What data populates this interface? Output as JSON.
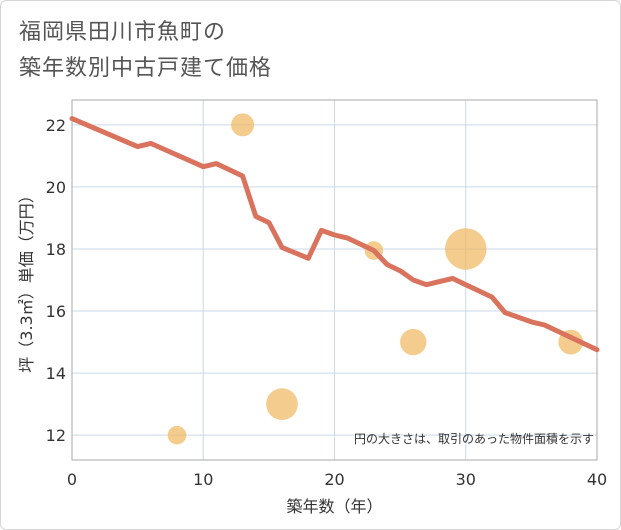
{
  "page": {
    "title_line1": "福岡県田川市魚町の",
    "title_line2": "築年数別中古戸建て価格"
  },
  "colors": {
    "line": "#d9735e",
    "bubble": "#f0b962",
    "grid": "#c9d9e8",
    "plot_border": "#aaaaaa"
  },
  "chart_data": {
    "type": "scatter",
    "title": "福岡県田川市魚町の築年数別中古戸建て価格",
    "xlabel": "築年数（年）",
    "ylabel": "坪（3.3㎡）単価（万円）",
    "xlim": [
      0,
      40
    ],
    "ylim": [
      11.2,
      22.8
    ],
    "x_ticks": [
      0,
      10,
      20,
      30,
      40
    ],
    "y_ticks": [
      12,
      14,
      16,
      18,
      20,
      22
    ],
    "grid": true,
    "note": "円の大きさは、取引のあった物件面積を示す",
    "trend_line": {
      "x": [
        0,
        5,
        6,
        10,
        11,
        13,
        14,
        15,
        16,
        18,
        19,
        20,
        21,
        23,
        24,
        25,
        26,
        27,
        28,
        29,
        30,
        31,
        32,
        33,
        35,
        36,
        38,
        40
      ],
      "y": [
        22.2,
        21.3,
        21.4,
        20.65,
        20.75,
        20.35,
        19.05,
        18.85,
        18.05,
        17.7,
        18.6,
        18.45,
        18.35,
        17.95,
        17.5,
        17.3,
        17.0,
        16.85,
        16.95,
        17.05,
        16.85,
        16.65,
        16.45,
        15.95,
        15.65,
        15.55,
        15.15,
        14.75
      ]
    },
    "bubbles": [
      {
        "x": 8,
        "y": 12.0,
        "size": 1
      },
      {
        "x": 13,
        "y": 22.0,
        "size": 2
      },
      {
        "x": 16,
        "y": 13.0,
        "size": 5
      },
      {
        "x": 23,
        "y": 17.95,
        "size": 1
      },
      {
        "x": 26,
        "y": 15.0,
        "size": 3
      },
      {
        "x": 30,
        "y": 18.0,
        "size": 10
      },
      {
        "x": 38,
        "y": 15.0,
        "size": 2.5
      }
    ]
  }
}
